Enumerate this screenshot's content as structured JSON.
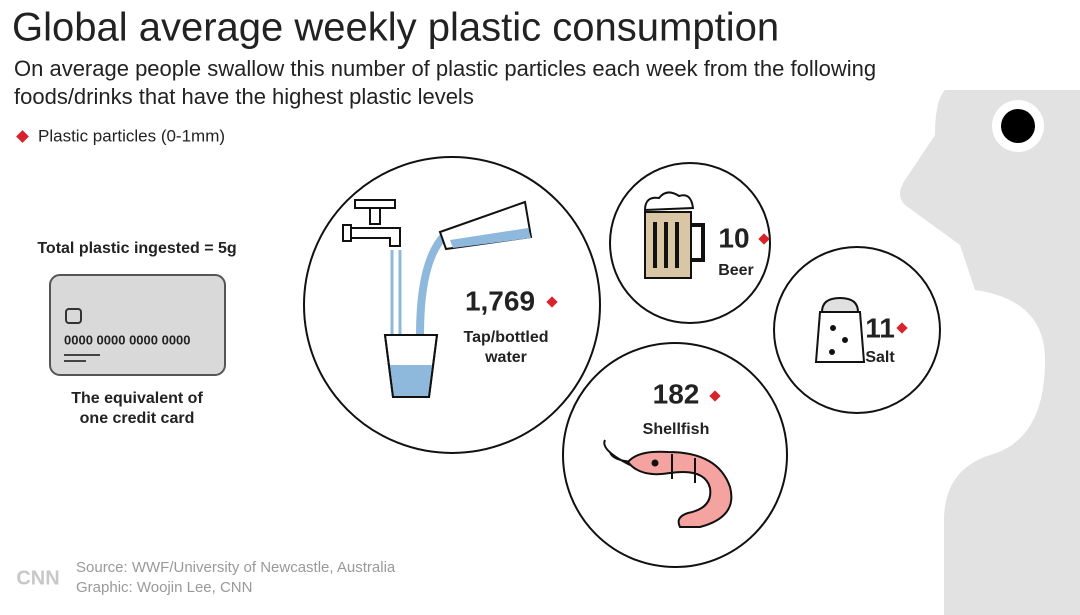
{
  "header": {
    "title": "Global average weekly plastic consumption",
    "subtitle_lines": [
      "On average people swallow this number of plastic particles each week from the following",
      "foods/drinks that have the highest plastic levels"
    ]
  },
  "legend": {
    "label": "Plastic particles (0-1mm)"
  },
  "card": {
    "heading": "Total plastic ingested = 5g",
    "number": "0000 0000 0000 0000",
    "caption_lines": [
      "The equivalent of",
      "one credit card"
    ]
  },
  "items": [
    {
      "value": "1,769",
      "label_lines": [
        "Tap/bottled",
        "water"
      ]
    },
    {
      "value": "10",
      "label_lines": [
        "Beer"
      ]
    },
    {
      "value": "11",
      "label_lines": [
        "Salt"
      ]
    },
    {
      "value": "182",
      "label_lines": [
        "Shellfish"
      ]
    }
  ],
  "footer": {
    "source": "Source: WWF/University of Newcastle, Australia",
    "credit": "Graphic: Woojin Lee, CNN",
    "logo": "CNN"
  }
}
